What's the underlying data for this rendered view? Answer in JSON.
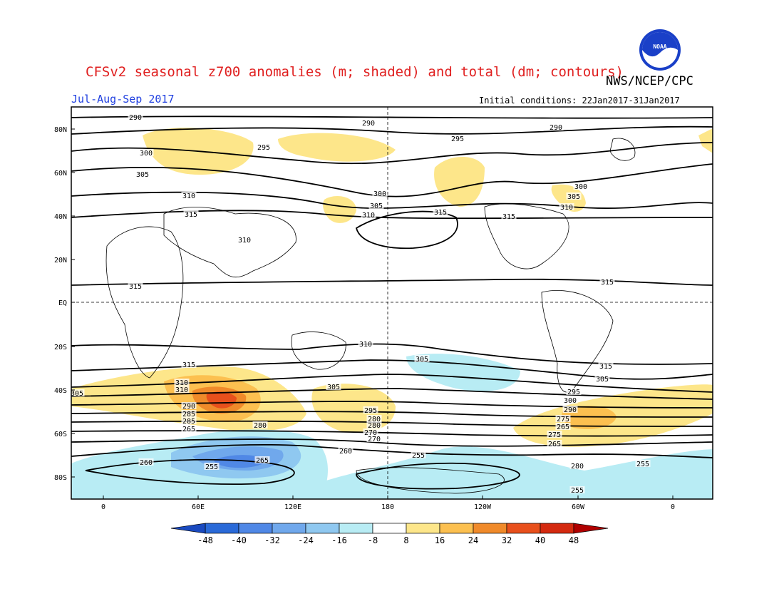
{
  "title": "CFSv2 seasonal z700 anomalies (m; shaded) and total (dm; contours)",
  "organization": "NWS/NCEP/CPC",
  "logo_text": "NOAA",
  "period": "Jul-Aug-Sep 2017",
  "initial_conditions": "Initial conditions: 22Jan2017-31Jan2017",
  "colors": {
    "title": "#e02020",
    "period": "#2040e0",
    "pos1": "#fde68a",
    "pos2": "#fcc050",
    "pos3": "#f08a2a",
    "pos4": "#e8501c",
    "pos5": "#d42a10",
    "pos6": "#b00000",
    "neg1": "#b8ecf4",
    "neg2": "#8fc8f0",
    "neg3": "#70a8ec",
    "neg4": "#5088e6",
    "neg5": "#2a6ad8",
    "neg6": "#1a4ac0"
  },
  "map": {
    "lat_labels": [
      "80N",
      "60N",
      "40N",
      "20N",
      "EQ",
      "20S",
      "40S",
      "60S",
      "80S"
    ],
    "lon_labels": [
      "0",
      "60E",
      "120E",
      "180",
      "120W",
      "60W",
      "0"
    ]
  },
  "chart_data": {
    "type": "heatmap",
    "contour_units": "dm",
    "shading_units": "m",
    "contour_labels": [
      "290",
      "290",
      "290",
      "295",
      "295",
      "300",
      "300",
      "305",
      "305",
      "310",
      "310",
      "315",
      "315",
      "300",
      "305",
      "310",
      "315",
      "310",
      "315",
      "315",
      "315",
      "310",
      "315",
      "310",
      "305",
      "305",
      "310",
      "305",
      "305",
      "295",
      "300",
      "295",
      "290",
      "290",
      "285",
      "280",
      "275",
      "270",
      "265",
      "285",
      "280",
      "275",
      "270",
      "265",
      "280",
      "260",
      "265",
      "255",
      "260",
      "265",
      "280",
      "255",
      "255",
      "255"
    ],
    "colorbar_ticks": [
      "-48",
      "-40",
      "-32",
      "-24",
      "-16",
      "-8",
      "8",
      "16",
      "24",
      "32",
      "40",
      "48"
    ]
  }
}
